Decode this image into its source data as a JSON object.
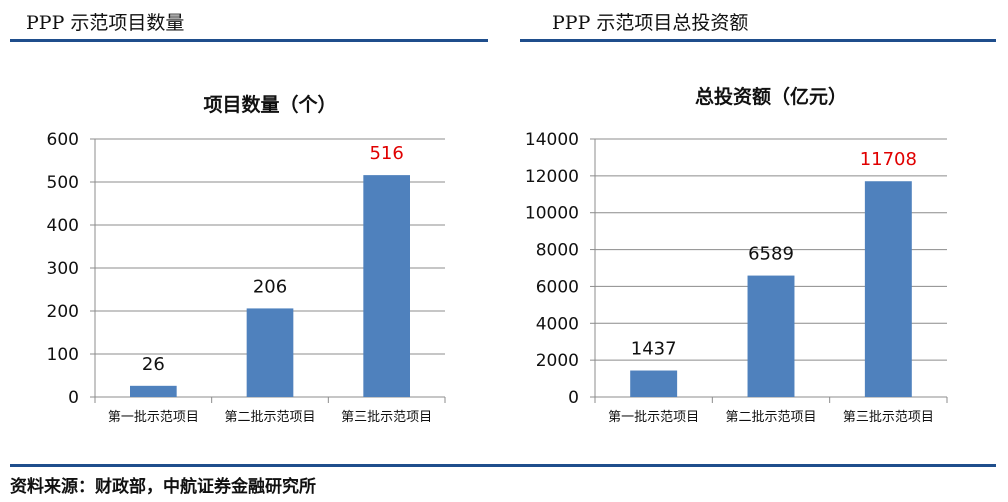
{
  "header": {
    "left_title": "PPP 示范项目数量",
    "right_title": "PPP 示范项目总投资额"
  },
  "footer": {
    "source": "资料来源：财政部，中航证券金融研究所"
  },
  "colors": {
    "bar": "#4f81bd",
    "highlight_label": "#e00000",
    "rule": "#1f4e8c"
  },
  "chart_data": [
    {
      "type": "bar",
      "title": "项目数量（个）",
      "categories": [
        "第一批示范项目",
        "第二批示范项目",
        "第三批示范项目"
      ],
      "values": [
        26,
        206,
        516
      ],
      "value_labels": [
        "26",
        "206",
        "516"
      ],
      "highlight_index": 2,
      "ylim": [
        0,
        600
      ],
      "yticks": [
        "0",
        "100",
        "200",
        "300",
        "400",
        "500",
        "600"
      ],
      "grid": true,
      "xlabel": "",
      "ylabel": ""
    },
    {
      "type": "bar",
      "title": "总投资额（亿元）",
      "categories": [
        "第一批示范项目",
        "第二批示范项目",
        "第三批示范项目"
      ],
      "values": [
        1437,
        6589,
        11708
      ],
      "value_labels": [
        "1437",
        "6589",
        "11708"
      ],
      "highlight_index": 2,
      "ylim": [
        0,
        14000
      ],
      "yticks": [
        "0",
        "2000",
        "4000",
        "6000",
        "8000",
        "10000",
        "12000",
        "14000"
      ],
      "grid": true,
      "xlabel": "",
      "ylabel": ""
    }
  ]
}
